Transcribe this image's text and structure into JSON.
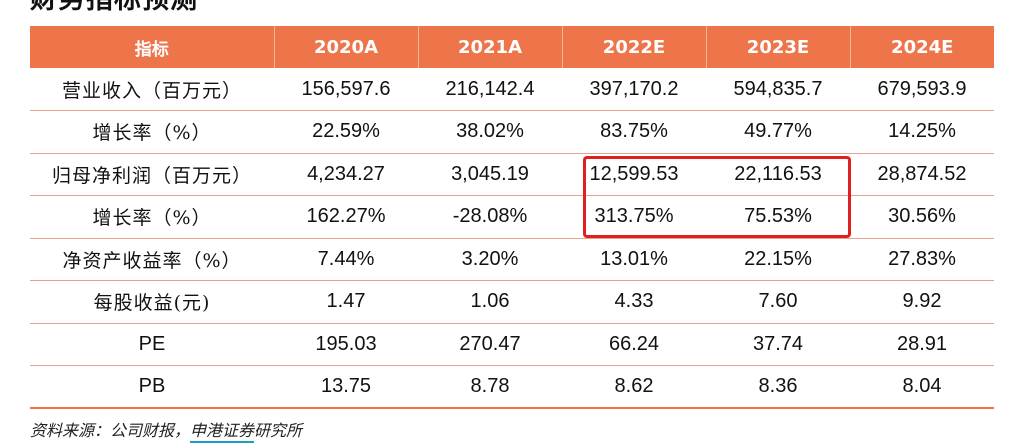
{
  "title": "财务指标预测",
  "table": {
    "header": [
      "指标",
      "2020A",
      "2021A",
      "2022E",
      "2023E",
      "2024E"
    ],
    "rows": [
      {
        "label": "营业收入（百万元）",
        "values": [
          "156,597.6",
          "216,142.4",
          "397,170.2",
          "594,835.7",
          "679,593.9"
        ]
      },
      {
        "label": "增长率（%）",
        "values": [
          "22.59%",
          "38.02%",
          "83.75%",
          "49.77%",
          "14.25%"
        ]
      },
      {
        "label": "归母净利润（百万元）",
        "values": [
          "4,234.27",
          "3,045.19",
          "12,599.53",
          "22,116.53",
          "28,874.52"
        ]
      },
      {
        "label": "增长率（%）",
        "values": [
          "162.27%",
          "-28.08%",
          "313.75%",
          "75.53%",
          "30.56%"
        ]
      },
      {
        "label": "净资产收益率（%）",
        "values": [
          "7.44%",
          "3.20%",
          "13.01%",
          "22.15%",
          "27.83%"
        ]
      },
      {
        "label": "每股收益(元)",
        "values": [
          "1.47",
          "1.06",
          "4.33",
          "7.60",
          "9.92"
        ]
      },
      {
        "label": "PE",
        "values": [
          "195.03",
          "270.47",
          "66.24",
          "37.74",
          "28.91"
        ]
      },
      {
        "label": "PB",
        "values": [
          "13.75",
          "8.78",
          "8.62",
          "8.36",
          "8.04"
        ]
      }
    ]
  },
  "source": {
    "prefix": "资料来源：公司财报，",
    "org": "申港证券",
    "suffix": "研究所"
  },
  "colors": {
    "header_bg": "#ee7449",
    "row_line": "#e6a48a",
    "highlight_border": "#e02020",
    "org_underline": "#1aa0c8"
  }
}
